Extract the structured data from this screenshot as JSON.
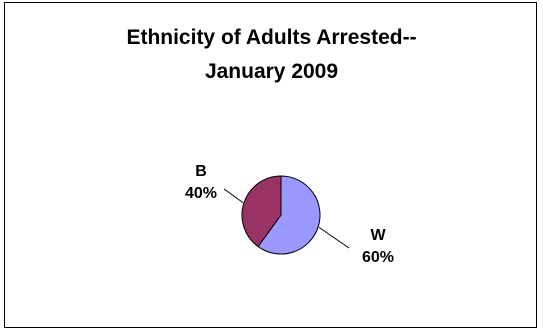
{
  "chart_data": {
    "type": "pie",
    "title": "Ethnicity of Adults Arrested--",
    "subtitle": "January 2009",
    "slices": [
      {
        "label": "W",
        "value": 60,
        "display": "60%",
        "color": "#9999ff"
      },
      {
        "label": "B",
        "value": 40,
        "display": "40%",
        "color": "#993366"
      }
    ]
  }
}
